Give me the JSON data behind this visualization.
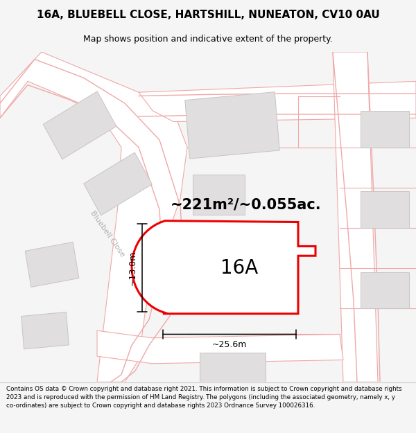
{
  "title_line1": "16A, BLUEBELL CLOSE, HARTSHILL, NUNEATON, CV10 0AU",
  "title_line2": "Map shows position and indicative extent of the property.",
  "area_text": "~221m²/~0.055ac.",
  "label_16a": "16A",
  "dim_height": "~13.0m",
  "dim_width": "~25.6m",
  "footer_text": "Contains OS data © Crown copyright and database right 2021. This information is subject to Crown copyright and database rights 2023 and is reproduced with the permission of HM Land Registry. The polygons (including the associated geometry, namely x, y co-ordinates) are subject to Crown copyright and database rights 2023 Ordnance Survey 100026316.",
  "bg_color": "#f5f5f5",
  "map_bg": "#f5f5f5",
  "footer_bg": "#f5f5f5",
  "plot_outline_color": "#ee0000",
  "road_color": "#f0a8a8",
  "road_fill": "#ffffff",
  "building_fill": "#e0dede",
  "building_edge": "#c8c4c4",
  "street_label_color": "#b0b0b0",
  "title_fontsize": 11,
  "subtitle_fontsize": 9,
  "area_fontsize": 15,
  "label_fontsize": 20,
  "dim_fontsize": 9,
  "footer_fontsize": 6.3
}
